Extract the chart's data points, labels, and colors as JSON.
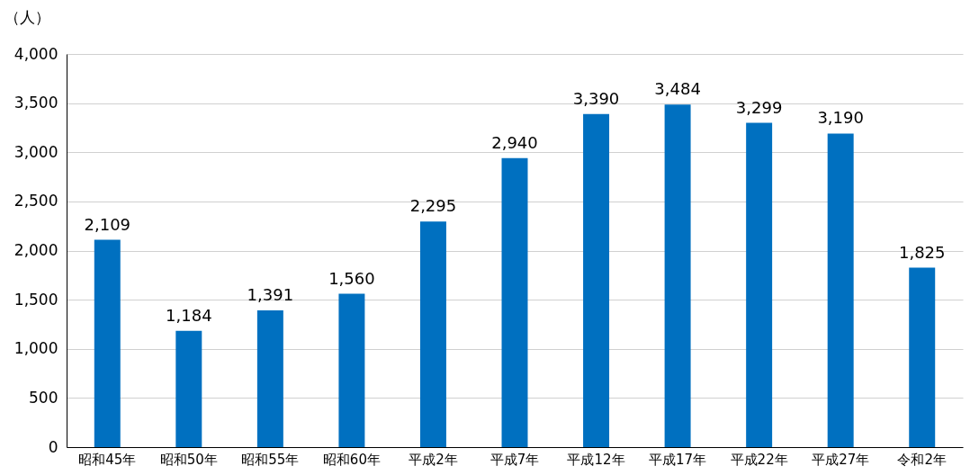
{
  "chart_data": {
    "type": "bar",
    "ylabel": "（人）",
    "categories": [
      "昭和45年",
      "昭和50年",
      "昭和55年",
      "昭和60年",
      "平成2年",
      "平成7年",
      "平成12年",
      "平成17年",
      "平成22年",
      "平成27年",
      "令和2年"
    ],
    "values": [
      2109,
      1184,
      1391,
      1560,
      2295,
      2940,
      3390,
      3484,
      3299,
      3190,
      1825
    ],
    "value_labels": [
      "2,109",
      "1,184",
      "1,391",
      "1,560",
      "2,295",
      "2,940",
      "3,390",
      "3,484",
      "3,299",
      "3,190",
      "1,825"
    ],
    "color": "#0070c0",
    "ylim": [
      0,
      4000
    ],
    "yticks": [
      {
        "value": 0,
        "label": "0"
      },
      {
        "value": 500,
        "label": "500"
      },
      {
        "value": 1000,
        "label": "1,000"
      },
      {
        "value": 1500,
        "label": "1,500"
      },
      {
        "value": 2000,
        "label": "2,000"
      },
      {
        "value": 2500,
        "label": "2,500"
      },
      {
        "value": 3000,
        "label": "3,000"
      },
      {
        "value": 3500,
        "label": "3,500"
      },
      {
        "value": 4000,
        "label": "4,000"
      }
    ],
    "grid": "y"
  }
}
